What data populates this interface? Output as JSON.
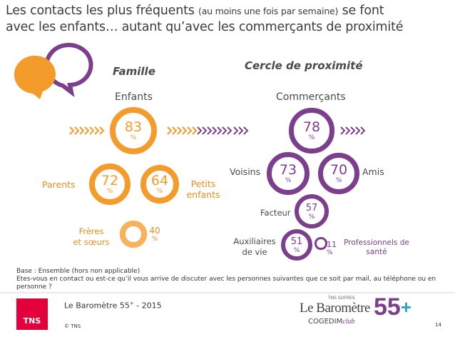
{
  "title": {
    "part1": "Les contacts les plus fréquents ",
    "part2": "(au moins une fois par semaine)",
    "part3": " se font",
    "line2": "avec les enfants… autant qu’avec les commerçants de proximité"
  },
  "groups": {
    "famille": "Famille",
    "proximite": "Cercle de proximité"
  },
  "colors": {
    "orange": "#f39c2b",
    "orange_light": "#f7b25b",
    "purple": "#7b3f8c",
    "text_orange": "#e8901f",
    "text_purple": "#7b3f8c",
    "grey_dark": "#5b5b5b",
    "tns_red": "#e4003b"
  },
  "chart_data": {
    "type": "bubble",
    "unit": "%",
    "groups": [
      {
        "name": "Famille",
        "items": [
          {
            "label": "Enfants",
            "value": 83
          },
          {
            "label": "Parents",
            "value": 72
          },
          {
            "label": "Petits enfants",
            "value": 64
          },
          {
            "label": "Frères et sœurs",
            "value": 40
          }
        ]
      },
      {
        "name": "Cercle de proximité",
        "items": [
          {
            "label": "Commerçants",
            "value": 78
          },
          {
            "label": "Voisins",
            "value": 73
          },
          {
            "label": "Amis",
            "value": 70
          },
          {
            "label": "Facteur",
            "value": 57
          },
          {
            "label": "Auxiliaires de vie",
            "value": 51
          },
          {
            "label": "Professionnels de santé",
            "value": 11
          }
        ]
      }
    ],
    "labels": {
      "enfants": "Enfants",
      "parents": "Parents",
      "petits_1": "Petits",
      "petits_2": "enfants",
      "freres_1": "Frères",
      "freres_2": "et sœurs",
      "commercants": "Commerçants",
      "voisins": "Voisins",
      "amis": "Amis",
      "facteur": "Facteur",
      "auxiliaires_1": "Auxiliaires",
      "auxiliaires_2": "de vie",
      "prof_1": "Professionnels de",
      "prof_2": "santé"
    },
    "values": {
      "enfants": "83",
      "parents": "72",
      "petits": "64",
      "freres": "40",
      "commercants": "78",
      "voisins": "73",
      "amis": "70",
      "facteur": "57",
      "auxiliaires": "51",
      "prof": "11"
    },
    "pct": "%"
  },
  "footnote": {
    "line1": "Base : Ensemble (hors non applicable)",
    "line2": "Etes-vous en contact ou est-ce qu’il vous arrive de discuter avec les personnes suivantes que ce soit par mail, au téléphone ou en",
    "line3": "personne ?"
  },
  "footer": {
    "brand": "TNS",
    "barometre": "Le Baromètre 55",
    "sup": "+",
    "year": " - 2015",
    "copyright": "© TNS",
    "page": "14",
    "logo_top": "TNS SOFRES",
    "logo_main": "Le Baromètre",
    "logo_55": "55",
    "logo_plus": "+",
    "logo_cogedim": "COGEDIM",
    "logo_club": "club"
  }
}
